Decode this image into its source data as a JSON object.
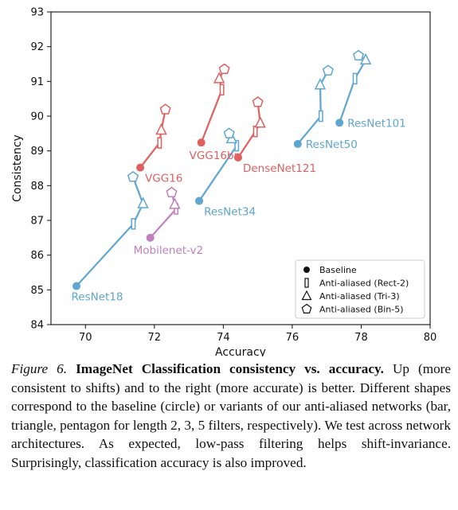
{
  "chart_data": {
    "type": "scatter",
    "xlabel": "Accuracy",
    "ylabel": "Consistency",
    "xlim": [
      69,
      80
    ],
    "ylim": [
      84,
      93
    ],
    "xticks": [
      "70",
      "72",
      "74",
      "76",
      "78",
      "80"
    ],
    "yticks": [
      "84",
      "85",
      "86",
      "87",
      "88",
      "89",
      "90",
      "91",
      "92",
      "93"
    ],
    "grid": false,
    "legend": {
      "placement": "lower-right",
      "entries": [
        {
          "marker": "circle",
          "label": "Baseline"
        },
        {
          "marker": "bar",
          "label": "Anti-aliased (Rect-2)"
        },
        {
          "marker": "triangle",
          "label": "Anti-aliased (Tri-3)"
        },
        {
          "marker": "pentagon",
          "label": "Anti-aliased (Bin-5)"
        }
      ]
    },
    "series": [
      {
        "name": "ResNet18",
        "color": "#5fa6d0",
        "label_pos": "below-left",
        "points": [
          {
            "x": 69.74,
            "y": 85.11,
            "marker": "circle"
          },
          {
            "x": 71.39,
            "y": 86.9,
            "marker": "bar"
          },
          {
            "x": 71.67,
            "y": 87.48,
            "marker": "triangle"
          },
          {
            "x": 71.38,
            "y": 88.25,
            "marker": "pentagon"
          }
        ]
      },
      {
        "name": "ResNet34",
        "color": "#5fa6d0",
        "label_pos": "below-right",
        "points": [
          {
            "x": 73.3,
            "y": 87.56,
            "marker": "circle"
          },
          {
            "x": 74.39,
            "y": 89.15,
            "marker": "bar"
          },
          {
            "x": 74.24,
            "y": 89.35,
            "marker": "triangle"
          },
          {
            "x": 74.17,
            "y": 89.5,
            "marker": "pentagon"
          }
        ]
      },
      {
        "name": "ResNet50",
        "color": "#5fa6d0",
        "label_pos": "right",
        "points": [
          {
            "x": 76.16,
            "y": 89.2,
            "marker": "circle"
          },
          {
            "x": 76.83,
            "y": 90.0,
            "marker": "bar"
          },
          {
            "x": 76.81,
            "y": 90.9,
            "marker": "triangle"
          },
          {
            "x": 77.04,
            "y": 91.31,
            "marker": "pentagon"
          }
        ]
      },
      {
        "name": "ResNet101",
        "color": "#5fa6d0",
        "label_pos": "right",
        "points": [
          {
            "x": 77.37,
            "y": 89.81,
            "marker": "circle"
          },
          {
            "x": 77.82,
            "y": 91.08,
            "marker": "bar"
          },
          {
            "x": 78.13,
            "y": 91.62,
            "marker": "triangle"
          },
          {
            "x": 77.92,
            "y": 91.74,
            "marker": "pentagon"
          }
        ]
      },
      {
        "name": "VGG16",
        "color": "#e06060",
        "label_pos": "below-right",
        "points": [
          {
            "x": 71.59,
            "y": 88.52,
            "marker": "circle"
          },
          {
            "x": 72.15,
            "y": 89.23,
            "marker": "bar"
          },
          {
            "x": 72.2,
            "y": 89.6,
            "marker": "triangle"
          },
          {
            "x": 72.32,
            "y": 90.19,
            "marker": "pentagon"
          }
        ]
      },
      {
        "name": "VGG16bn",
        "color": "#e06060",
        "label_pos": "below-left",
        "points": [
          {
            "x": 73.36,
            "y": 89.24,
            "marker": "circle"
          },
          {
            "x": 73.96,
            "y": 90.76,
            "marker": "bar"
          },
          {
            "x": 73.88,
            "y": 91.08,
            "marker": "triangle"
          },
          {
            "x": 74.03,
            "y": 91.35,
            "marker": "pentagon"
          }
        ]
      },
      {
        "name": "DenseNet121",
        "color": "#e06060",
        "label_pos": "below-right",
        "points": [
          {
            "x": 74.43,
            "y": 88.81,
            "marker": "circle"
          },
          {
            "x": 74.93,
            "y": 89.56,
            "marker": "bar"
          },
          {
            "x": 75.07,
            "y": 89.8,
            "marker": "triangle"
          },
          {
            "x": 75.0,
            "y": 90.4,
            "marker": "pentagon"
          }
        ]
      },
      {
        "name": "Mobilenet-v2",
        "color": "#c07fbf",
        "label_pos": "below-left",
        "points": [
          {
            "x": 71.88,
            "y": 86.5,
            "marker": "circle"
          },
          {
            "x": 72.63,
            "y": 87.33,
            "marker": "bar"
          },
          {
            "x": 72.59,
            "y": 87.46,
            "marker": "triangle"
          },
          {
            "x": 72.5,
            "y": 87.8,
            "marker": "pentagon"
          }
        ]
      }
    ]
  },
  "caption": {
    "figure_label": "Figure 6.",
    "title": "ImageNet Classification consistency vs. accuracy.",
    "body": "Up (more consistent to shifts) and to the right (more accurate) is better. Different shapes correspond to the baseline (circle) or variants of our anti-aliased networks (bar, triangle, pentagon for length 2, 3, 5 filters, respectively). We test across network architectures. As expected, low-pass filtering helps shift-invariance. Surprisingly, classification accuracy is also improved."
  }
}
